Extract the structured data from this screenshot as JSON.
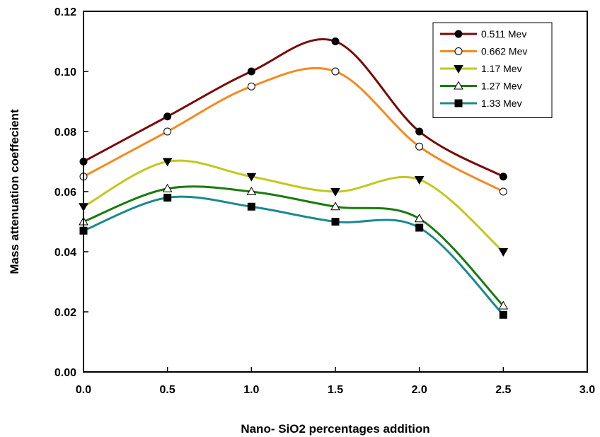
{
  "chart_data": {
    "type": "line",
    "title": "",
    "xlabel": "Nano- SiO2 percentages addition",
    "ylabel": "Mass attenuation coeffecient",
    "xlim": [
      0.0,
      3.0
    ],
    "ylim": [
      0.0,
      0.12
    ],
    "x_ticks": [
      "0.0",
      "0.5",
      "1.0",
      "1.5",
      "2.0",
      "2.5",
      "3.0"
    ],
    "y_ticks": [
      "0.00",
      "0.02",
      "0.04",
      "0.06",
      "0.08",
      "0.10",
      "0.12"
    ],
    "grid": false,
    "legend_position": "top-right",
    "x": [
      0.0,
      0.5,
      1.0,
      1.5,
      2.0,
      2.5
    ],
    "series": [
      {
        "name": "0.511 Mev",
        "values": [
          0.07,
          0.085,
          0.1,
          0.11,
          0.08,
          0.065
        ],
        "color": "#7a0a0a",
        "marker": "filled-circle"
      },
      {
        "name": "0.662 Mev",
        "values": [
          0.065,
          0.08,
          0.095,
          0.1,
          0.075,
          0.06
        ],
        "color": "#f5891f",
        "marker": "open-circle"
      },
      {
        "name": "1.17 Mev",
        "values": [
          0.055,
          0.07,
          0.065,
          0.06,
          0.064,
          0.04
        ],
        "color": "#c2c81e",
        "marker": "filled-triangle-down"
      },
      {
        "name": "1.27 Mev",
        "values": [
          0.05,
          0.061,
          0.06,
          0.055,
          0.051,
          0.022
        ],
        "color": "#1a7a0e",
        "marker": "open-triangle-up"
      },
      {
        "name": "1.33 Mev",
        "values": [
          0.047,
          0.058,
          0.055,
          0.05,
          0.048,
          0.019
        ],
        "color": "#1a8a8c",
        "marker": "filled-square"
      }
    ]
  }
}
